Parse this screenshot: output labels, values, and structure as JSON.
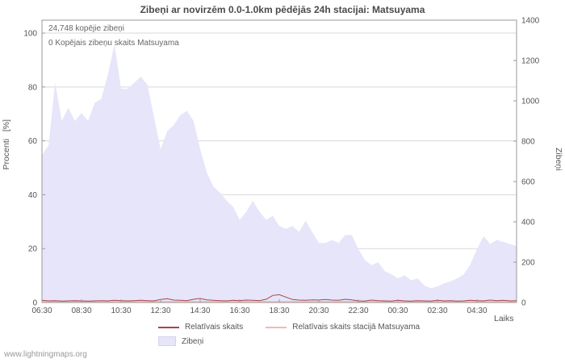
{
  "page": {
    "title": "Zibeņi ar novirzēm 0.0-1.0km pēdējās 24h stacijai: Matsuyama",
    "watermark": "www.lightningmaps.org"
  },
  "annotations": {
    "total": "24,748 kopējie zibeņi",
    "station_total": "0 Kopējais zibeņu skaits Matsuyama"
  },
  "axes": {
    "left_label": "Procenti   [%]",
    "right_label": "Zibeņi",
    "x_label": "Laiks"
  },
  "legend": {
    "relative": "Relatīvais skaits",
    "relative_station": "Relatīvais skaits stacijā Matsuyama",
    "strikes": "Zibeņi"
  },
  "colors": {
    "area": "#e6e5fa",
    "line_relative": "#aa4444",
    "line_station": "#f2b8ba",
    "grid": "#d8d8d8",
    "axis": "#9a9a9a",
    "text": "#555555"
  },
  "chart_data": {
    "type": "area",
    "title": "Zibeņi ar novirzēm 0.0-1.0km pēdējās 24h stacijai: Matsuyama",
    "xlabel": "Laiks",
    "ylabel_left": "Procenti [%]",
    "ylabel_right": "Zibeņi",
    "grid": true,
    "legend_position": "bottom",
    "left_axis": {
      "max": 104.8,
      "ticks": [
        0,
        20,
        40,
        60,
        80,
        100
      ]
    },
    "right_axis": {
      "max": 1400,
      "ticks": [
        0,
        200,
        400,
        600,
        800,
        1000,
        1200,
        1400
      ]
    },
    "x_start": "06:30",
    "x_step_minutes": 20,
    "x_tick_step_minutes": 120,
    "x_ticks": [
      "06:30",
      "08:30",
      "10:30",
      "12:30",
      "14:30",
      "16:30",
      "18:30",
      "20:30",
      "22:30",
      "00:30",
      "02:30",
      "04:30"
    ],
    "series": [
      {
        "name": "Zibeņi",
        "type": "area",
        "axis": "right",
        "color": "#e6e5fa",
        "values": [
          730,
          780,
          1090,
          900,
          965,
          900,
          940,
          900,
          990,
          1010,
          1130,
          1280,
          1060,
          1060,
          1090,
          1120,
          1080,
          920,
          760,
          850,
          880,
          930,
          950,
          900,
          760,
          645,
          575,
          545,
          505,
          475,
          410,
          450,
          505,
          450,
          410,
          430,
          380,
          365,
          380,
          350,
          405,
          350,
          295,
          295,
          310,
          295,
          335,
          335,
          265,
          210,
          185,
          200,
          155,
          140,
          120,
          135,
          110,
          120,
          85,
          70,
          80,
          95,
          105,
          120,
          140,
          190,
          265,
          330,
          290,
          310,
          300,
          290,
          280
        ]
      },
      {
        "name": "Relatīvais skaits",
        "type": "line",
        "axis": "left",
        "color": "#aa4444",
        "values": [
          0.8,
          0.6,
          0.7,
          0.5,
          0.6,
          0.7,
          0.6,
          0.5,
          0.6,
          0.7,
          0.6,
          0.8,
          0.7,
          0.6,
          0.7,
          0.8,
          0.7,
          0.6,
          1.1,
          1.4,
          0.9,
          0.8,
          0.7,
          1.2,
          1.5,
          1.0,
          0.8,
          0.7,
          0.6,
          0.8,
          0.7,
          0.9,
          0.8,
          0.7,
          1.2,
          2.6,
          2.9,
          2.0,
          1.1,
          0.9,
          0.8,
          1.0,
          0.9,
          1.1,
          0.9,
          0.8,
          1.2,
          1.0,
          0.6,
          0.5,
          0.9,
          0.7,
          0.6,
          0.5,
          0.8,
          0.6,
          0.5,
          0.7,
          0.6,
          0.5,
          0.8,
          0.6,
          0.7,
          0.5,
          0.6,
          0.8,
          0.7,
          0.6,
          0.9,
          0.7,
          0.8,
          0.6,
          0.7
        ]
      },
      {
        "name": "Relatīvais skaits stacijā Matsuyama",
        "type": "line",
        "axis": "left",
        "color": "#f2b8ba",
        "constant": 0
      }
    ]
  }
}
